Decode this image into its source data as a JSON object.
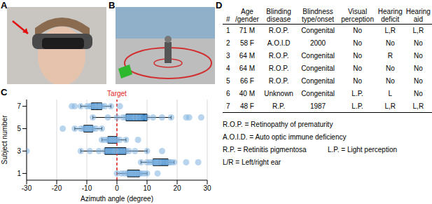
{
  "panel_labels": [
    "A",
    "B",
    "C",
    "D"
  ],
  "chart_data": {
    "type": "box",
    "x_label": "Azimuth angle (degree)",
    "y_label": "Subject number",
    "annotation": "Target",
    "target": 0,
    "xlim": [
      -30,
      30
    ],
    "xticks": [
      -30,
      -20,
      -10,
      0,
      10,
      20,
      30
    ],
    "ylim": [
      0.4,
      7.6
    ],
    "yticks": [
      1,
      2,
      3,
      4,
      5,
      6,
      7
    ],
    "grid": true,
    "color": "#2e7cc0",
    "boxes": [
      {
        "subject": 1,
        "min": 0,
        "q1": 3.5,
        "median": 5.5,
        "q3": 7.5,
        "max": 10,
        "points": [
          0,
          1.5,
          2.5,
          3.5,
          4,
          4.5,
          5,
          5.5,
          5.5,
          6,
          6.5,
          7,
          7.5,
          8,
          9,
          10,
          13.5
        ]
      },
      {
        "subject": 2,
        "min": 8,
        "q1": 12,
        "median": 14,
        "q3": 17,
        "max": 19,
        "points": [
          8,
          10,
          11,
          12,
          12.5,
          13,
          13.5,
          14,
          14,
          15,
          16,
          17,
          17.5,
          18,
          19,
          23,
          27
        ]
      },
      {
        "subject": 3,
        "min": -12,
        "q1": -4,
        "median": -0.5,
        "q3": 3,
        "max": 10,
        "points": [
          -30,
          -12,
          -9,
          -6,
          -4,
          -3,
          -2,
          -1,
          -0.5,
          0,
          1,
          2,
          3,
          4,
          6,
          10,
          15
        ]
      },
      {
        "subject": 4,
        "min": -5,
        "q1": -3,
        "median": -1.5,
        "q3": 0,
        "max": 3,
        "points": [
          -5,
          -4,
          -3,
          -2.5,
          -2,
          -1.5,
          -1.5,
          -1,
          -0.5,
          0,
          1,
          3,
          7
        ]
      },
      {
        "subject": 5,
        "min": -14,
        "q1": -11,
        "median": -9.5,
        "q3": -8,
        "max": -5,
        "points": [
          -18,
          -14,
          -12,
          -11,
          -10.5,
          -10,
          -9.5,
          -9.5,
          -9,
          -8.5,
          -8,
          -7,
          -5
        ]
      },
      {
        "subject": 6,
        "min": -8,
        "q1": 3,
        "median": 6,
        "q3": 10,
        "max": 18,
        "points": [
          -8,
          -3,
          0,
          2,
          3,
          4,
          5,
          6,
          6,
          7,
          8,
          10,
          12,
          15,
          18,
          23,
          24,
          28
        ]
      },
      {
        "subject": 7,
        "min": -12,
        "q1": -8.5,
        "median": -6.5,
        "q3": -5,
        "max": -2,
        "points": [
          -15,
          -14,
          -12,
          -10,
          -9,
          -8.5,
          -7.5,
          -7,
          -6.5,
          -6,
          -5.5,
          -5,
          -4,
          -2,
          1
        ]
      }
    ]
  },
  "table": {
    "header": [
      [
        "#"
      ],
      [
        "Age",
        "/gender"
      ],
      [
        "Blinding",
        "disease"
      ],
      [
        "Blindness",
        "type/onset"
      ],
      [
        "Visual",
        "perception"
      ],
      [
        "Hearing",
        "deficit"
      ],
      [
        "Hearing",
        "aid"
      ]
    ],
    "rows": [
      [
        "1",
        "71 M",
        "R.O.P.",
        "Congenital",
        "No",
        "L,R",
        "L,R"
      ],
      [
        "2",
        "58 F",
        "A.O.I.D",
        "2000",
        "No",
        "No",
        "No"
      ],
      [
        "3",
        "64 M",
        "R.O.P.",
        "Congenital",
        "No",
        "R",
        "No"
      ],
      [
        "4",
        "64 M",
        "R.O.P.",
        "Congenital",
        "No",
        "No",
        "No"
      ],
      [
        "5",
        "66 F",
        "R.O.P.",
        "Congenital",
        "No",
        "No",
        "No"
      ],
      [
        "6",
        "40 M",
        "Unknown",
        "Congenital",
        "L.P.",
        "L",
        "No"
      ],
      [
        "7",
        "48 F",
        "R.P.",
        "1987",
        "L.P.",
        "L,R",
        "L,R"
      ]
    ]
  },
  "footnotes": [
    [
      "R.O.P. = Retinopathy of prematurity"
    ],
    [
      "A.O.I.D. = Auto optic immune deficiency"
    ],
    [
      "R.P. = Retinitis pigmentosa",
      "L.P. = Light perception"
    ],
    [
      "L/R = Left/right ear"
    ]
  ]
}
